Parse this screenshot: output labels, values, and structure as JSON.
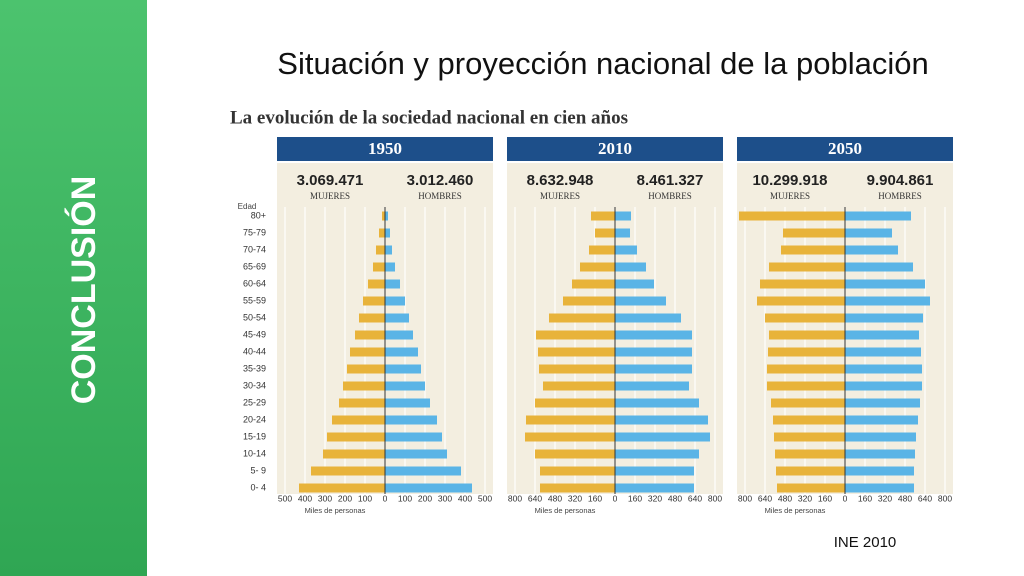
{
  "slide": {
    "title": "Situación y proyección nacional de la población",
    "side_label": "CONCLUSIÓN",
    "source": "INE 2010"
  },
  "figure_title": "La evolución de la sociedad nacional en cien años",
  "age_label": "Edad",
  "chart_data": [
    {
      "type": "pyramid",
      "title": "1950",
      "xlabel": "Miles de personas",
      "categories": [
        "80+",
        "75-79",
        "70-74",
        "65-69",
        "60-64",
        "55-59",
        "50-54",
        "45-49",
        "40-44",
        "35-39",
        "30-34",
        "25-29",
        "20-24",
        "15-19",
        "10-14",
        "5- 9",
        "0- 4"
      ],
      "xlim": [
        0,
        500
      ],
      "xticks": [
        0,
        100,
        200,
        300,
        400,
        500
      ],
      "series": [
        {
          "name": "MUJERES",
          "total": "3.069.471",
          "color": "#e8b33a",
          "values": [
            15,
            30,
            45,
            60,
            85,
            110,
            130,
            150,
            175,
            190,
            210,
            230,
            265,
            290,
            310,
            370,
            430
          ]
        },
        {
          "name": "HOMBRES",
          "total": "3.012.460",
          "color": "#5ab4e6",
          "values": [
            15,
            25,
            35,
            50,
            75,
            100,
            120,
            140,
            165,
            180,
            200,
            225,
            260,
            285,
            310,
            380,
            435
          ]
        }
      ]
    },
    {
      "type": "pyramid",
      "title": "2010",
      "xlabel": "Miles de personas",
      "xlim": [
        0,
        800
      ],
      "xticks": [
        0,
        160,
        320,
        480,
        640,
        800
      ],
      "series": [
        {
          "name": "MUJERES",
          "total": "8.632.948",
          "color": "#e8b33a",
          "values": [
            192,
            160,
            208,
            280,
            344,
            416,
            528,
            632,
            616,
            608,
            576,
            640,
            712,
            720,
            640,
            600,
            600
          ]
        },
        {
          "name": "HOMBRES",
          "total": "8.461.327",
          "color": "#5ab4e6",
          "values": [
            128,
            120,
            176,
            248,
            312,
            408,
            528,
            616,
            616,
            616,
            592,
            672,
            744,
            760,
            672,
            632,
            632
          ]
        }
      ]
    },
    {
      "type": "pyramid",
      "title": "2050",
      "xlabel": "Miles de personas",
      "xlim": [
        0,
        800
      ],
      "xticks": [
        0,
        160,
        320,
        480,
        640,
        800
      ],
      "series": [
        {
          "name": "MUJERES",
          "total": "10.299.918",
          "color": "#e8b33a",
          "values": [
            848,
            496,
            512,
            608,
            680,
            704,
            640,
            608,
            616,
            624,
            624,
            592,
            576,
            568,
            560,
            552,
            544
          ]
        },
        {
          "name": "HOMBRES",
          "total": "9.904.861",
          "color": "#5ab4e6",
          "values": [
            528,
            376,
            424,
            544,
            640,
            680,
            624,
            592,
            608,
            616,
            616,
            600,
            584,
            568,
            560,
            552,
            552
          ]
        }
      ]
    }
  ]
}
